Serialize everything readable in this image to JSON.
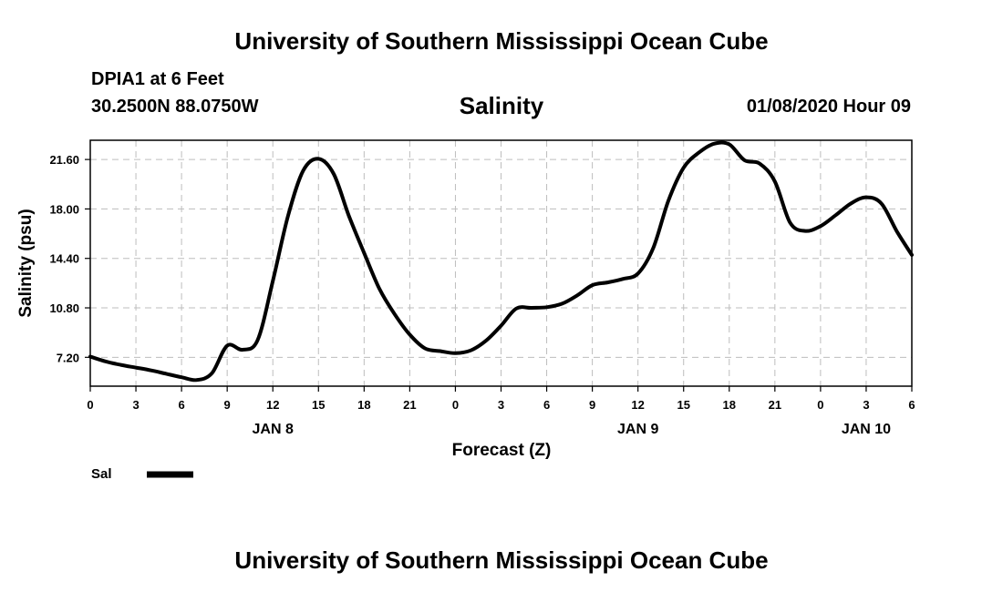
{
  "header": {
    "title": "University of Southern Mississippi Ocean Cube",
    "station": "DPIA1 at 6 Feet",
    "coordinates": "30.2500N 88.0750W",
    "subtitle": "Salinity",
    "datetime": "01/08/2020 Hour 09"
  },
  "footer": {
    "title": "University of Southern Mississippi Ocean Cube"
  },
  "chart_data": {
    "type": "line",
    "title": "Salinity",
    "xlabel": "Forecast (Z)",
    "ylabel": "Salinity (psu)",
    "x_range": [
      0,
      54
    ],
    "ylim": [
      5.1,
      23.0
    ],
    "grid": true,
    "x_ticks": [
      {
        "x": 0,
        "label": "0"
      },
      {
        "x": 3,
        "label": "3"
      },
      {
        "x": 6,
        "label": "6"
      },
      {
        "x": 9,
        "label": "9"
      },
      {
        "x": 12,
        "label": "12"
      },
      {
        "x": 15,
        "label": "15"
      },
      {
        "x": 18,
        "label": "18"
      },
      {
        "x": 21,
        "label": "21"
      },
      {
        "x": 24,
        "label": "0"
      },
      {
        "x": 27,
        "label": "3"
      },
      {
        "x": 30,
        "label": "6"
      },
      {
        "x": 33,
        "label": "9"
      },
      {
        "x": 36,
        "label": "12"
      },
      {
        "x": 39,
        "label": "15"
      },
      {
        "x": 42,
        "label": "18"
      },
      {
        "x": 45,
        "label": "21"
      },
      {
        "x": 48,
        "label": "0"
      },
      {
        "x": 51,
        "label": "3"
      },
      {
        "x": 54,
        "label": "6"
      }
    ],
    "y_ticks": [
      {
        "y": 7.2,
        "label": "7.20"
      },
      {
        "y": 10.8,
        "label": "10.80"
      },
      {
        "y": 14.4,
        "label": "14.40"
      },
      {
        "y": 18.0,
        "label": "18.00"
      },
      {
        "y": 21.6,
        "label": "21.60"
      }
    ],
    "date_labels": [
      {
        "x": 12,
        "label": "JAN 8"
      },
      {
        "x": 36,
        "label": "JAN 9"
      },
      {
        "x": 51,
        "label": "JAN 10"
      }
    ],
    "legend": {
      "position": "bottom-left",
      "entries": [
        {
          "name": "Sal",
          "color": "#000000"
        }
      ]
    },
    "series": [
      {
        "name": "Sal",
        "color": "#000000",
        "x": [
          0,
          1,
          2,
          3,
          4,
          5,
          6,
          7,
          8,
          9,
          10,
          11,
          12,
          13,
          14,
          15,
          16,
          17,
          18,
          19,
          20,
          21,
          22,
          23,
          24,
          25,
          26,
          27,
          28,
          29,
          30,
          31,
          32,
          33,
          34,
          35,
          36,
          37,
          38,
          39,
          40,
          41,
          42,
          43,
          44,
          45,
          46,
          47,
          48,
          49,
          50,
          51,
          52,
          53,
          54
        ],
        "values": [
          7.25,
          6.9,
          6.65,
          6.45,
          6.25,
          6.0,
          5.75,
          5.55,
          6.05,
          8.05,
          7.75,
          8.45,
          12.75,
          17.5,
          20.8,
          21.65,
          20.55,
          17.5,
          14.8,
          12.2,
          10.35,
          8.85,
          7.85,
          7.65,
          7.5,
          7.7,
          8.4,
          9.5,
          10.75,
          10.8,
          10.85,
          11.1,
          11.7,
          12.45,
          12.65,
          12.9,
          13.3,
          15.15,
          18.6,
          21.0,
          22.1,
          22.75,
          22.7,
          21.55,
          21.3,
          20.0,
          17.0,
          16.4,
          16.75,
          17.55,
          18.4,
          18.85,
          18.4,
          16.4,
          14.65
        ]
      }
    ]
  }
}
